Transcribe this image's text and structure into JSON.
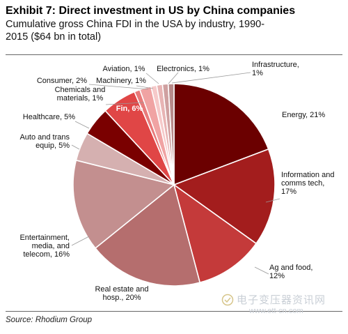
{
  "header": {
    "title": "Exhibit 7: Direct investment in US by China companies",
    "subtitle_line1": "Cumulative gross China FDI in the USA by industry, 1990-",
    "subtitle_line2": "2015 ($64 bn in total)"
  },
  "source": "Source: Rhodium Group",
  "watermark": {
    "text": "电子变压器资讯网",
    "url": "www.ett-cn.com"
  },
  "chart_data": {
    "type": "pie",
    "title": "",
    "start_angle_deg": 0,
    "direction": "clockwise",
    "slices": [
      {
        "label_lines": [
          "Energy, 21%"
        ],
        "value": 21,
        "color": "#6b0000"
      },
      {
        "label_lines": [
          "Information and",
          "comms tech,",
          "17%"
        ],
        "value": 17,
        "color": "#a31d1d"
      },
      {
        "label_lines": [
          "Ag and food,",
          "12%"
        ],
        "value": 12,
        "color": "#c43a3a"
      },
      {
        "label_lines": [
          "Real estate and",
          "hosp., 20%"
        ],
        "value": 20,
        "color": "#b56e6e"
      },
      {
        "label_lines": [
          "Entertainment,",
          "media, and",
          "telecom, 16%"
        ],
        "value": 16,
        "color": "#c38f8f"
      },
      {
        "label_lines": [
          "Auto and trans",
          "equip, 5%"
        ],
        "value": 5,
        "color": "#d5b0b0"
      },
      {
        "label_lines": [
          "Healthcare, 5%"
        ],
        "value": 5,
        "color": "#7a0000"
      },
      {
        "label_lines": [
          "Fin, 6%"
        ],
        "value": 6,
        "color": "#e04646"
      },
      {
        "label_lines": [
          "Chemicals and",
          "materials, 1%"
        ],
        "value": 1,
        "color": "#e87a7a"
      },
      {
        "label_lines": [
          "Consumer, 2%"
        ],
        "value": 2,
        "color": "#f0a3a3"
      },
      {
        "label_lines": [
          "Machinery, 1%"
        ],
        "value": 1,
        "color": "#f6c9c9"
      },
      {
        "label_lines": [
          "Aviation, 1%"
        ],
        "value": 1,
        "color": "#e8b4b4"
      },
      {
        "label_lines": [
          "Electronics, 1%"
        ],
        "value": 1,
        "color": "#cfa0a0"
      },
      {
        "label_lines": [
          "Infrastructure,",
          "1%"
        ],
        "value": 1,
        "color": "#b88a8a"
      }
    ]
  }
}
